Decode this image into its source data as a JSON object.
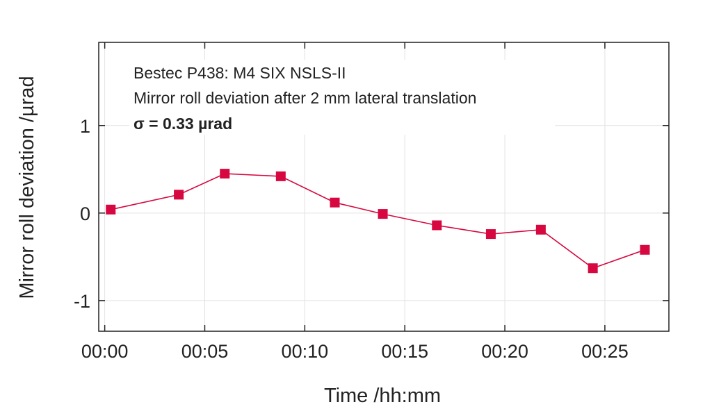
{
  "chart_data": {
    "type": "line",
    "title": "",
    "xlabel": "Time /hh:mm",
    "ylabel": "Mirror roll deviation /µrad",
    "x_ticks": [
      "00:00",
      "00:05",
      "00:10",
      "00:15",
      "00:20",
      "00:25"
    ],
    "x_tick_minutes": [
      0,
      5,
      10,
      15,
      20,
      25
    ],
    "y_ticks": [
      1,
      0,
      -1
    ],
    "y_tick_labels": [
      "1",
      "0",
      "-1"
    ],
    "xlim_minutes": [
      -0.3,
      28.2
    ],
    "ylim": [
      -1.35,
      1.95
    ],
    "grid": true,
    "annotations": [
      "Bestec P438: M4 SIX NSLS-II",
      "Mirror roll deviation after 2 mm lateral translation",
      "σ = 0.33 µrad"
    ],
    "series": [
      {
        "color": "#d6083f",
        "marker": "square",
        "x_minutes": [
          0.3,
          3.7,
          6.0,
          8.8,
          11.5,
          13.9,
          16.6,
          19.3,
          21.8,
          24.4,
          27.0
        ],
        "values": [
          0.04,
          0.21,
          0.45,
          0.42,
          0.12,
          -0.01,
          -0.14,
          -0.24,
          -0.19,
          -0.63,
          -0.42
        ]
      }
    ]
  }
}
